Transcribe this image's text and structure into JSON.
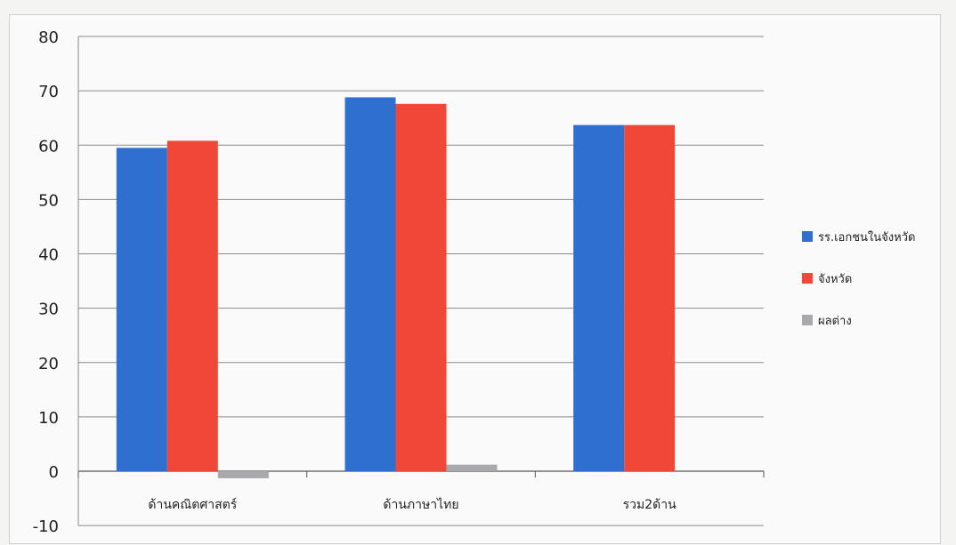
{
  "chart_data": {
    "type": "bar",
    "title": "",
    "categories": [
      "ด้านคณิตศาสตร์",
      "ด้านภาษาไทย",
      "รวม2ด้าน"
    ],
    "series": [
      {
        "name": "รร.เอกชนในจังหวัด",
        "values": [
          59.5,
          68.8,
          63.7
        ],
        "color": "#2f6fd0"
      },
      {
        "name": "จังหวัด",
        "values": [
          60.8,
          67.6,
          63.7
        ],
        "color": "#f04838"
      },
      {
        "name": "ผลต่าง",
        "values": [
          -1.3,
          1.2,
          0.0
        ],
        "color": "#a9a9ad"
      }
    ],
    "ylim": [
      -10,
      80
    ],
    "yticks": [
      80,
      70,
      60,
      50,
      40,
      30,
      20,
      10,
      0,
      -10
    ],
    "grid": true,
    "legend_position": "right"
  }
}
